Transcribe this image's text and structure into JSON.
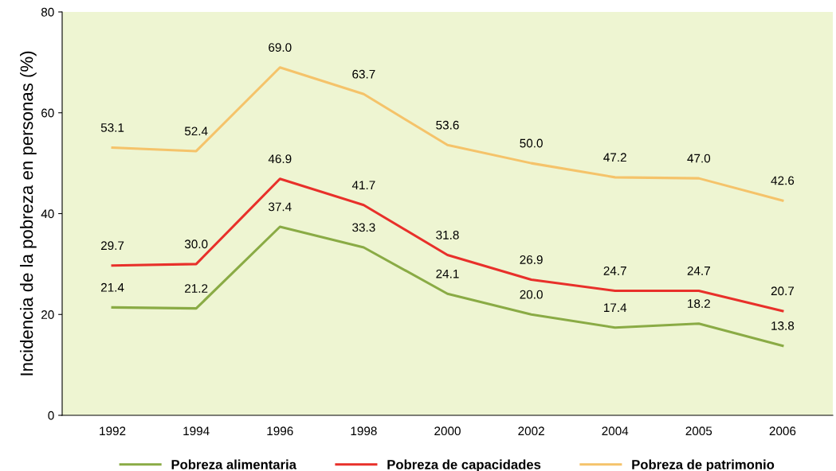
{
  "chart_data": {
    "type": "line",
    "ylabel": "Incidencia de la pobreza en personas (%)",
    "categories": [
      "1992",
      "1994",
      "1996",
      "1998",
      "2000",
      "2002",
      "2004",
      "2005",
      "2006"
    ],
    "series": [
      {
        "name": "Pobreza alimentaria",
        "color": "#8aab45",
        "values": [
          21.4,
          21.2,
          37.4,
          33.3,
          24.1,
          20.0,
          17.4,
          18.2,
          13.8
        ],
        "value_labels": [
          "21.4",
          "21.2",
          "37.4",
          "33.3",
          "24.1",
          "20.0",
          "17.4",
          "18.2",
          "13.8"
        ]
      },
      {
        "name": "Pobreza de capacidades",
        "color": "#e8302a",
        "values": [
          29.7,
          30.0,
          46.9,
          41.7,
          31.8,
          26.9,
          24.7,
          24.7,
          20.7
        ],
        "value_labels": [
          "29.7",
          "30.0",
          "46.9",
          "41.7",
          "31.8",
          "26.9",
          "24.7",
          "24.7",
          "20.7"
        ]
      },
      {
        "name": "Pobreza de patrimonio",
        "color": "#f5c36a",
        "values": [
          53.1,
          52.4,
          69.0,
          63.7,
          53.6,
          50.0,
          47.2,
          47.0,
          42.6
        ],
        "value_labels": [
          "53.1",
          "52.4",
          "69.0",
          "63.7",
          "53.6",
          "50.0",
          "47.2",
          "47.0",
          "42.6"
        ]
      }
    ],
    "ylim": [
      0,
      80
    ],
    "yticks": [
      0,
      20,
      40,
      60,
      80
    ],
    "grid": false,
    "legend": "bottom",
    "marker": "none",
    "line_style": "solid"
  }
}
